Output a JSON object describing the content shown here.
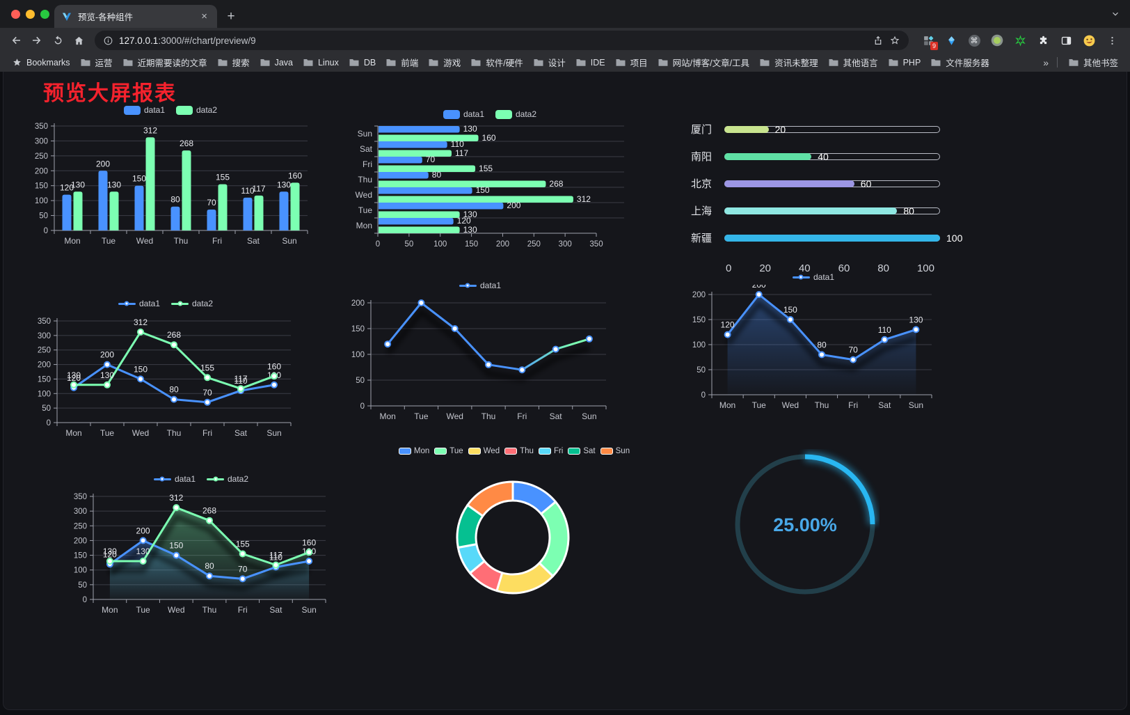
{
  "browser": {
    "tab": {
      "title": "预览-各种组件",
      "close": "×",
      "new_tab": "+"
    },
    "url": {
      "host": "127.0.0.1",
      "rest": ":3000/#/chart/preview/9"
    },
    "extension_badge": "9",
    "bookmarks_label": "Bookmarks",
    "bookmarks": [
      "运营",
      "近期需要读的文章",
      "搜索",
      "Java",
      "Linux",
      "DB",
      "前端",
      "游戏",
      "软件/硬件",
      "设计",
      "IDE",
      "项目",
      "网站/博客/文章/工具",
      "资讯未整理",
      "其他语言",
      "PHP",
      "文件服务器"
    ],
    "bookmarks_overflow": "»",
    "other_bookmarks": "其他书签"
  },
  "page": {
    "title": "预览大屏报表",
    "title_color": "#f5222d",
    "background": "#15161b"
  },
  "chart_data": [
    {
      "type": "bar",
      "categories": [
        "Mon",
        "Tue",
        "Wed",
        "Thu",
        "Fri",
        "Sat",
        "Sun"
      ],
      "series": [
        {
          "name": "data1",
          "color": "#4992ff",
          "values": [
            120,
            200,
            150,
            80,
            70,
            110,
            130
          ]
        },
        {
          "name": "data2",
          "color": "#7cffb2",
          "values": [
            130,
            130,
            312,
            268,
            155,
            117,
            160
          ]
        }
      ],
      "ylim": [
        0,
        350
      ],
      "ystep": 50,
      "grid": true,
      "legend_position": "top",
      "labels": true
    },
    {
      "type": "hbar",
      "categories": [
        "Mon",
        "Tue",
        "Wed",
        "Thu",
        "Fri",
        "Sat",
        "Sun"
      ],
      "series": [
        {
          "name": "data1",
          "color": "#4992ff",
          "values": [
            120,
            200,
            150,
            80,
            70,
            110,
            130
          ]
        },
        {
          "name": "data2",
          "color": "#7cffb2",
          "values": [
            130,
            130,
            312,
            268,
            155,
            117,
            160
          ]
        }
      ],
      "xlim": [
        0,
        350
      ],
      "xstep": 50,
      "grid": true,
      "legend_position": "top",
      "labels": true
    },
    {
      "type": "progress",
      "max": 100,
      "ticks": [
        0,
        20,
        40,
        60,
        80,
        100
      ],
      "rows": [
        {
          "label": "厦门",
          "value": 20,
          "color": "#c8e48f"
        },
        {
          "label": "南阳",
          "value": 40,
          "color": "#5fe0a5"
        },
        {
          "label": "北京",
          "value": 60,
          "color": "#9c96e4"
        },
        {
          "label": "上海",
          "value": 80,
          "color": "#8fe7e2"
        },
        {
          "label": "新疆",
          "value": 100,
          "color": "#34b5e8"
        }
      ]
    },
    {
      "type": "line",
      "categories": [
        "Mon",
        "Tue",
        "Wed",
        "Thu",
        "Fri",
        "Sat",
        "Sun"
      ],
      "series": [
        {
          "name": "data1",
          "color": "#4992ff",
          "values": [
            120,
            200,
            150,
            80,
            70,
            110,
            130
          ]
        },
        {
          "name": "data2",
          "color": "#7cffb2",
          "values": [
            130,
            130,
            312,
            268,
            155,
            117,
            160
          ]
        }
      ],
      "ylim": [
        0,
        350
      ],
      "ystep": 50,
      "labels": true,
      "grid": true,
      "legend_position": "top"
    },
    {
      "type": "line",
      "categories": [
        "Mon",
        "Tue",
        "Wed",
        "Thu",
        "Fri",
        "Sat",
        "Sun"
      ],
      "series": [
        {
          "name": "data1",
          "color": "#4992ff",
          "ring": "#4992ff",
          "gradient": [
            "#4992ff",
            "#7cffb2"
          ],
          "values": [
            120,
            200,
            150,
            80,
            70,
            110,
            130
          ]
        }
      ],
      "ylim": [
        0,
        200
      ],
      "ystep": 50,
      "labels": false,
      "shadow": true,
      "grid": true,
      "legend_position": "top"
    },
    {
      "type": "line",
      "categories": [
        "Mon",
        "Tue",
        "Wed",
        "Thu",
        "Fri",
        "Sat",
        "Sun"
      ],
      "series": [
        {
          "name": "data1",
          "color": "#4992ff",
          "area": true,
          "values": [
            120,
            200,
            150,
            80,
            70,
            110,
            130
          ]
        }
      ],
      "ylim": [
        0,
        200
      ],
      "ystep": 50,
      "labels": true,
      "shadow": true,
      "grid": true,
      "legend_position": "top"
    },
    {
      "type": "line",
      "categories": [
        "Mon",
        "Tue",
        "Wed",
        "Thu",
        "Fri",
        "Sat",
        "Sun"
      ],
      "series": [
        {
          "name": "data1",
          "color": "#4992ff",
          "area": true,
          "values": [
            120,
            200,
            150,
            80,
            70,
            110,
            130
          ]
        },
        {
          "name": "data2",
          "color": "#7cffb2",
          "area": true,
          "values": [
            130,
            130,
            312,
            268,
            155,
            117,
            160
          ]
        }
      ],
      "ylim": [
        0,
        350
      ],
      "ystep": 50,
      "labels": true,
      "shadow": true,
      "grid": true,
      "legend_position": "top"
    },
    {
      "type": "pie",
      "legend_position": "top",
      "items": [
        {
          "name": "Mon",
          "value": 120,
          "color": "#4992ff"
        },
        {
          "name": "Tue",
          "value": 200,
          "color": "#7cffb2"
        },
        {
          "name": "Wed",
          "value": 150,
          "color": "#fddd60"
        },
        {
          "name": "Thu",
          "value": 80,
          "color": "#ff6e76"
        },
        {
          "name": "Fri",
          "value": 70,
          "color": "#58d9f9"
        },
        {
          "name": "Sat",
          "value": 110,
          "color": "#05c091"
        },
        {
          "name": "Sun",
          "value": 130,
          "color": "#ff8a45"
        }
      ]
    },
    {
      "type": "gauge",
      "value": 25,
      "label": "25.00%",
      "color": "#29b7f2",
      "track_color": "#223f4a",
      "text_color": "#49a8e8"
    }
  ]
}
